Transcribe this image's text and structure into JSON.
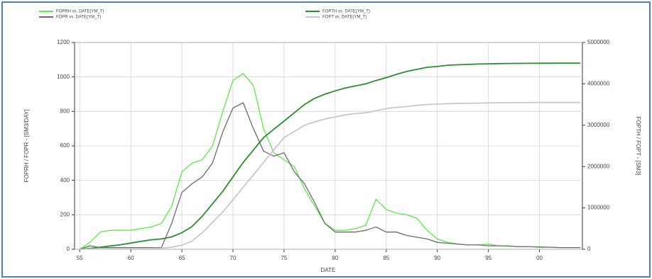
{
  "chart_data": {
    "type": "line",
    "x_label": "DATE",
    "y_label": "FOPRH / FOPR - [SM3/DAY]",
    "y2_label": "FOPTH / FOPT - [SM3]",
    "x": [
      1955,
      1956,
      1957,
      1958,
      1959,
      1960,
      1961,
      1962,
      1963,
      1964,
      1965,
      1966,
      1967,
      1968,
      1969,
      1970,
      1971,
      1972,
      1973,
      1974,
      1975,
      1976,
      1977,
      1978,
      1979,
      1980,
      1981,
      1982,
      1983,
      1984,
      1985,
      1986,
      1987,
      1988,
      1989,
      1990,
      1991,
      1992,
      1993,
      1994,
      1995,
      1996,
      1997,
      1998,
      1999,
      2000,
      2001,
      2002,
      2003,
      2004
    ],
    "series": [
      {
        "name": "FOPRH vs. DATE(YM_T)",
        "color": "#5fe84a",
        "axis": "y",
        "values": [
          0,
          40,
          100,
          110,
          110,
          110,
          120,
          130,
          150,
          250,
          450,
          500,
          520,
          600,
          800,
          980,
          1020,
          950,
          700,
          560,
          520,
          480,
          350,
          250,
          150,
          110,
          110,
          120,
          140,
          290,
          230,
          210,
          200,
          180,
          110,
          60,
          40,
          30,
          25,
          25,
          30,
          20,
          20,
          15,
          15,
          15,
          12,
          10,
          10,
          10
        ]
      },
      {
        "name": "FOPR vs. DATE(YM_T)",
        "color": "#6b6b6b",
        "axis": "y",
        "values": [
          0,
          20,
          10,
          10,
          10,
          10,
          10,
          10,
          10,
          150,
          330,
          380,
          420,
          500,
          680,
          820,
          850,
          700,
          570,
          540,
          560,
          450,
          380,
          270,
          150,
          100,
          100,
          100,
          110,
          130,
          100,
          100,
          80,
          70,
          60,
          40,
          35,
          30,
          25,
          25,
          20,
          20,
          18,
          15,
          15,
          12,
          12,
          10,
          10,
          10
        ]
      },
      {
        "name": "FOPTH vs. DATE(YM_T)",
        "color": "#2e8b2e",
        "axis": "y2",
        "values": [
          0,
          20000,
          50000,
          80000,
          110000,
          150000,
          190000,
          230000,
          250000,
          300000,
          400000,
          550000,
          800000,
          1100000,
          1400000,
          1750000,
          2100000,
          2400000,
          2700000,
          2900000,
          3100000,
          3300000,
          3500000,
          3650000,
          3750000,
          3830000,
          3900000,
          3950000,
          4000000,
          4080000,
          4150000,
          4230000,
          4300000,
          4350000,
          4400000,
          4420000,
          4450000,
          4460000,
          4470000,
          4480000,
          4485000,
          4490000,
          4493000,
          4495000,
          4497000,
          4498000,
          4499000,
          4500000,
          4500000,
          4500000
        ]
      },
      {
        "name": "FOPT vs. DATE(YM_T)",
        "color": "#c8c8c8",
        "axis": "y2",
        "values": [
          0,
          5000,
          8000,
          10000,
          12000,
          15000,
          18000,
          20000,
          25000,
          50000,
          100000,
          200000,
          400000,
          650000,
          900000,
          1200000,
          1500000,
          1800000,
          2100000,
          2400000,
          2700000,
          2850000,
          3000000,
          3080000,
          3150000,
          3200000,
          3250000,
          3280000,
          3300000,
          3350000,
          3400000,
          3430000,
          3450000,
          3480000,
          3500000,
          3510000,
          3520000,
          3525000,
          3530000,
          3535000,
          3540000,
          3542000,
          3544000,
          3546000,
          3548000,
          3549000,
          3550000,
          3550000,
          3550000,
          3550000
        ]
      }
    ],
    "xlim": [
      1954.5,
      2004.2
    ],
    "xticks": [
      {
        "value": 1955,
        "label": "55"
      },
      {
        "value": 1960,
        "label": "60"
      },
      {
        "value": 1965,
        "label": "65"
      },
      {
        "value": 1970,
        "label": "70"
      },
      {
        "value": 1975,
        "label": "75"
      },
      {
        "value": 1980,
        "label": "80"
      },
      {
        "value": 1985,
        "label": "85"
      },
      {
        "value": 1990,
        "label": "90"
      },
      {
        "value": 1995,
        "label": "95"
      },
      {
        "value": 2000,
        "label": "00"
      }
    ],
    "ylim": [
      0,
      1200
    ],
    "yticks": [
      0,
      200,
      400,
      600,
      800,
      1000,
      1200
    ],
    "y2lim": [
      0,
      5000000
    ],
    "y2ticks": [
      0,
      1000000,
      2000000,
      3000000,
      4000000,
      5000000
    ],
    "grid": true
  }
}
